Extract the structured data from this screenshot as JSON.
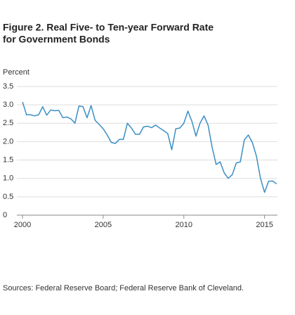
{
  "chart_data": {
    "type": "line",
    "title": [
      "Figure 2. Real Five- to Ten-year Forward Rate",
      "for Government Bonds"
    ],
    "y_label": "Percent",
    "source": "Sources: Federal Reserve Board; Federal Reserve Bank of Cleveland.",
    "x": [
      2000,
      2000.25,
      2000.5,
      2000.75,
      2001,
      2001.25,
      2001.5,
      2001.75,
      2002,
      2002.25,
      2002.5,
      2002.75,
      2003,
      2003.25,
      2003.5,
      2003.75,
      2004,
      2004.25,
      2004.5,
      2004.75,
      2005,
      2005.25,
      2005.5,
      2005.75,
      2006,
      2006.25,
      2006.5,
      2006.75,
      2007,
      2007.25,
      2007.5,
      2007.75,
      2008,
      2008.25,
      2008.5,
      2008.75,
      2009,
      2009.25,
      2009.5,
      2009.75,
      2010,
      2010.25,
      2010.5,
      2010.75,
      2011,
      2011.25,
      2011.5,
      2011.75,
      2012,
      2012.25,
      2012.5,
      2012.75,
      2013,
      2013.25,
      2013.5,
      2013.75,
      2014,
      2014.25,
      2014.5,
      2014.75,
      2015,
      2015.25,
      2015.5,
      2015.75
    ],
    "series": [
      {
        "color": "#3a8fc4",
        "values": [
          3.08,
          2.73,
          2.73,
          2.7,
          2.73,
          2.95,
          2.72,
          2.86,
          2.84,
          2.85,
          2.65,
          2.67,
          2.62,
          2.5,
          2.97,
          2.95,
          2.65,
          2.98,
          2.58,
          2.47,
          2.35,
          2.18,
          1.98,
          1.95,
          2.06,
          2.06,
          2.5,
          2.37,
          2.2,
          2.2,
          2.4,
          2.42,
          2.38,
          2.45,
          2.37,
          2.3,
          2.22,
          1.78,
          2.35,
          2.37,
          2.5,
          2.83,
          2.55,
          2.15,
          2.5,
          2.7,
          2.45,
          1.85,
          1.38,
          1.45,
          1.15,
          1.0,
          1.1,
          1.42,
          1.45,
          2.05,
          2.18,
          1.97,
          1.6,
          1.0,
          0.62,
          0.92,
          0.93,
          0.85
        ]
      }
    ],
    "xlim": [
      1999.65,
      2015.8
    ],
    "xticks": [
      2000,
      2005,
      2010,
      2015
    ],
    "ylim": [
      0,
      3.5
    ],
    "yticks": [
      0,
      0.5,
      {
        "value": 1,
        "label": "1.0"
      },
      1.5,
      {
        "value": 2,
        "label": "2.0"
      },
      2.5,
      {
        "value": 3,
        "label": "3.0"
      },
      3.5
    ],
    "grid": true
  }
}
